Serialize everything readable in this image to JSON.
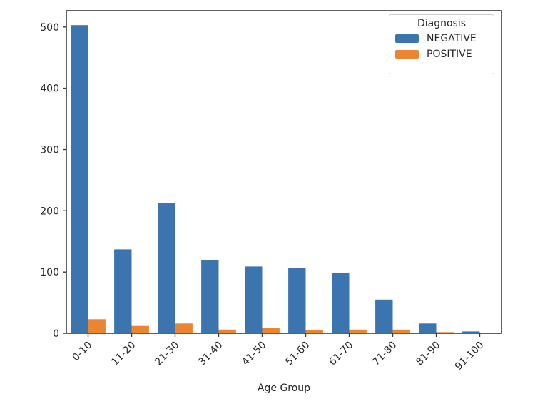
{
  "figure": {
    "background": "#ffffff",
    "text_color": "#262626",
    "spine_color": "#3a3a3a"
  },
  "chart_data": {
    "type": "bar",
    "title": "",
    "categories": [
      "0-10",
      "11-20",
      "21-30",
      "31-40",
      "41-50",
      "51-60",
      "61-70",
      "71-80",
      "81-90",
      "91-100"
    ],
    "series": [
      {
        "name": "NEGATIVE",
        "color": "#3b74ae",
        "values": [
          503,
          137,
          213,
          120,
          109,
          107,
          98,
          55,
          16,
          3
        ]
      },
      {
        "name": "POSITIVE",
        "color": "#ec8532",
        "values": [
          23,
          12,
          16,
          6,
          9,
          5,
          6,
          6,
          2,
          1
        ]
      }
    ],
    "xlabel": "Age Group",
    "ylabel": "",
    "ylim": [
      0,
      526
    ],
    "yticks": [
      0,
      100,
      200,
      300,
      400,
      500
    ],
    "xtick_rotation": 45,
    "grid": false,
    "legend": {
      "title": "Diagnosis",
      "position": "upper right"
    }
  }
}
